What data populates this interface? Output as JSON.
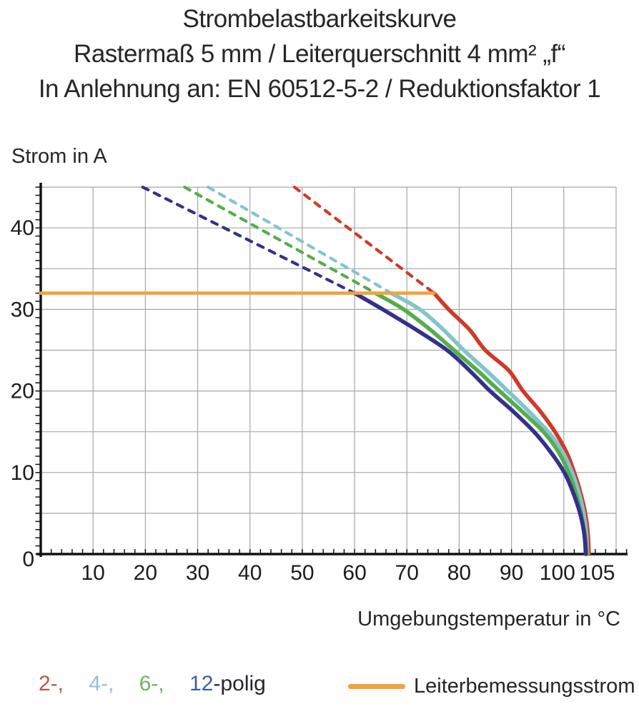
{
  "chart_data": {
    "type": "line",
    "title_lines": [
      "Strombelastbarkeitskurve",
      "Rastermaß 5 mm / Leiterquerschnitt 4 mm² „f“",
      "In Anlehnung an: EN 60512-5-2 / Reduktionsfaktor 1"
    ],
    "ylabel": "Strom in A",
    "xlabel": "Umgebungstemperatur in °C",
    "xlim": [
      0,
      110
    ],
    "ylim": [
      0,
      45
    ],
    "x_grid_step": 10,
    "y_grid_step": 5,
    "x_tick_step_minor": 2,
    "y_tick_step_minor": 1,
    "grid_color": "#a6a6a6",
    "axis_color": "#111111",
    "x_ticks": [
      {
        "v": 10
      },
      {
        "v": 20
      },
      {
        "v": 30
      },
      {
        "v": 40
      },
      {
        "v": 50
      },
      {
        "v": 60
      },
      {
        "v": 70
      },
      {
        "v": 80
      },
      {
        "v": 90
      },
      {
        "v": 100,
        "dx": -9
      },
      {
        "v": 105,
        "dx": 10
      }
    ],
    "y_ticks": [
      {
        "v": 0,
        "dy": 17
      },
      {
        "v": 10,
        "dy": 10
      },
      {
        "v": 20,
        "dy": 10
      },
      {
        "v": 30,
        "dy": 10
      },
      {
        "v": 40,
        "dy": 10
      }
    ],
    "rated_current": {
      "value": 32,
      "x_start": 0,
      "x_end": 75.2,
      "color": "#f0a43c",
      "label": "Leiterbemessungsstrom"
    },
    "series": [
      {
        "name": "2-polig",
        "color": "#d03a28",
        "dashed": [
          [
            48.5,
            45
          ],
          [
            75.2,
            32
          ]
        ],
        "solid": [
          [
            75.2,
            32
          ],
          [
            78,
            30
          ],
          [
            82,
            27.5
          ],
          [
            85,
            25
          ],
          [
            89.5,
            22.5
          ],
          [
            92.2,
            20
          ],
          [
            95.5,
            17.5
          ],
          [
            98.3,
            15
          ],
          [
            100.5,
            12.5
          ],
          [
            102,
            10
          ],
          [
            103.2,
            7.5
          ],
          [
            104.1,
            5
          ],
          [
            104.6,
            2.5
          ],
          [
            104.8,
            0
          ]
        ]
      },
      {
        "name": "4-polig",
        "color": "#82c4cc",
        "dashed": [
          [
            32,
            45
          ],
          [
            67,
            32
          ]
        ],
        "solid": [
          [
            67,
            32
          ],
          [
            72.5,
            30
          ],
          [
            77,
            27.5
          ],
          [
            80.9,
            25
          ],
          [
            85.2,
            22.5
          ],
          [
            89.3,
            20
          ],
          [
            93.3,
            17.5
          ],
          [
            97,
            15
          ],
          [
            99.8,
            12.5
          ],
          [
            101.6,
            10
          ],
          [
            102.9,
            7.5
          ],
          [
            103.8,
            5
          ],
          [
            104.3,
            2.5
          ],
          [
            104.5,
            0
          ]
        ]
      },
      {
        "name": "6-polig",
        "color": "#55ad4b",
        "dashed": [
          [
            27.5,
            45
          ],
          [
            64,
            32
          ]
        ],
        "solid": [
          [
            64,
            32
          ],
          [
            69.4,
            30
          ],
          [
            74.5,
            27.5
          ],
          [
            79,
            25
          ],
          [
            83.5,
            22.5
          ],
          [
            87.7,
            20
          ],
          [
            92,
            17.5
          ],
          [
            96.1,
            15
          ],
          [
            99,
            12.5
          ],
          [
            100.9,
            10
          ],
          [
            102.3,
            7.5
          ],
          [
            103.3,
            5
          ],
          [
            104,
            2.5
          ],
          [
            104.4,
            0
          ]
        ]
      },
      {
        "name": "12-polig",
        "color": "#34308c",
        "dashed": [
          [
            19.5,
            45
          ],
          [
            60,
            32
          ]
        ],
        "solid": [
          [
            60,
            32
          ],
          [
            65.4,
            30
          ],
          [
            71.8,
            27.5
          ],
          [
            77.7,
            25
          ],
          [
            82,
            22.5
          ],
          [
            85.9,
            20
          ],
          [
            90.3,
            17.5
          ],
          [
            94.3,
            15
          ],
          [
            97.5,
            12.5
          ],
          [
            100.1,
            10
          ],
          [
            101.8,
            7.5
          ],
          [
            103.1,
            5
          ],
          [
            103.9,
            2.5
          ],
          [
            104.2,
            0
          ]
        ]
      }
    ],
    "legend": {
      "poles": [
        {
          "label": "2-,",
          "color": "#c4524b"
        },
        {
          "label": "4-,",
          "color": "#8fc3d4"
        },
        {
          "label": "6-,",
          "color": "#6fb35f"
        },
        {
          "label": "12",
          "color": "#3c5fa9"
        }
      ],
      "suffix": "-polig",
      "rated_label": "Leiterbemessungsstrom",
      "rated_color": "#f0a43c"
    }
  }
}
